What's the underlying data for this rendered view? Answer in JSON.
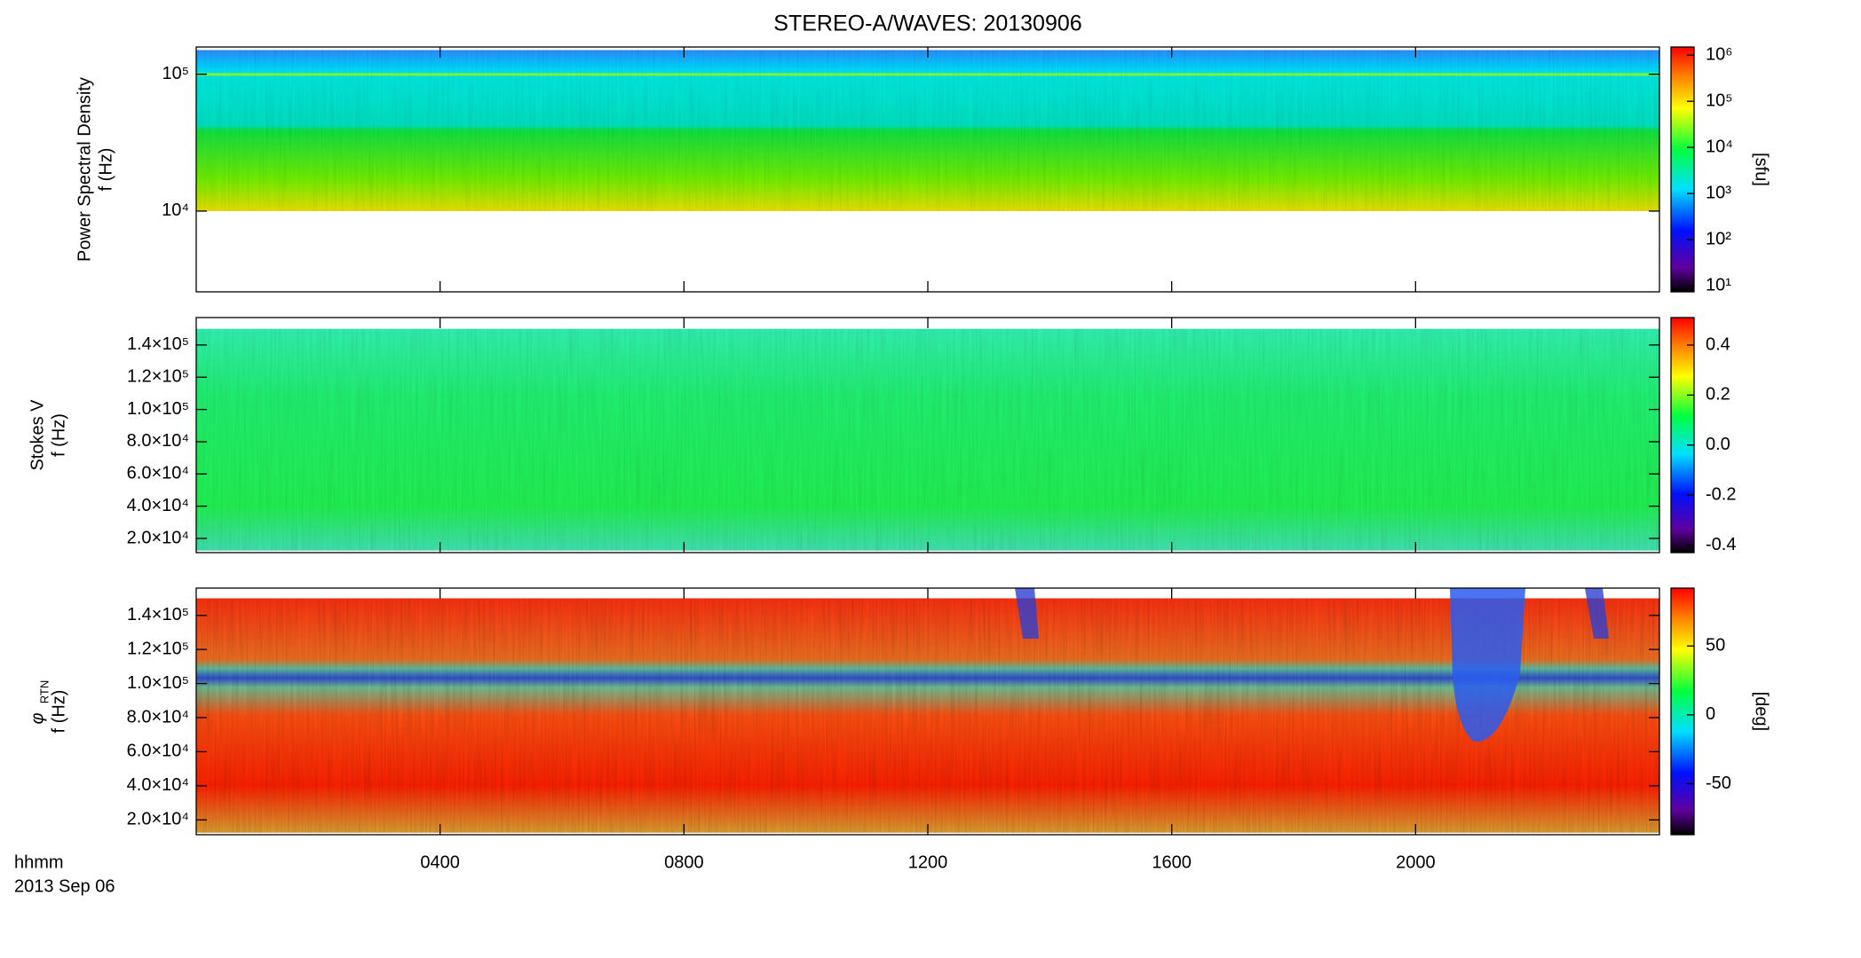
{
  "chart_data": [
    {
      "type": "spectrogram",
      "title": "STEREO-A/WAVES: 20130906",
      "ylabel": "Power Spectral Density",
      "ylabel2": "f (Hz)",
      "ylog": true,
      "ylim": [
        2570,
        158000
      ],
      "yticks": [
        {
          "value": 10000,
          "label": "10⁴"
        },
        {
          "value": 100000,
          "label": "10⁵"
        }
      ],
      "f_range": [
        10000,
        150000
      ],
      "xlim": [
        0,
        24
      ],
      "colorbar": {
        "label": "[sfu]",
        "log": true,
        "clim": [
          7.4,
          1500000
        ],
        "ticks": [
          {
            "value": 10,
            "label": "10¹"
          },
          {
            "value": 100,
            "label": "10²"
          },
          {
            "value": 1000,
            "label": "10³"
          },
          {
            "value": 10000,
            "label": "10⁴"
          },
          {
            "value": 100000,
            "label": "10⁵"
          },
          {
            "value": 1000000,
            "label": "10⁶"
          }
        ]
      }
    },
    {
      "type": "spectrogram",
      "ylabel": "Stokes V",
      "ylabel2": "f (Hz)",
      "ylog": false,
      "ylim": [
        11200,
        157000
      ],
      "yticks": [
        {
          "value": 20000,
          "label": "2.0×10⁴"
        },
        {
          "value": 40000,
          "label": "4.0×10⁴"
        },
        {
          "value": 60000,
          "label": "6.0×10⁴"
        },
        {
          "value": 80000,
          "label": "8.0×10⁴"
        },
        {
          "value": 100000,
          "label": "1.0×10⁵"
        },
        {
          "value": 120000,
          "label": "1.2×10⁵"
        },
        {
          "value": 140000,
          "label": "1.4×10⁵"
        }
      ],
      "f_range": [
        12500,
        150000
      ],
      "xlim": [
        0,
        24
      ],
      "colorbar": {
        "log": false,
        "clim": [
          -0.43,
          0.51
        ],
        "ticks": [
          {
            "value": -0.4,
            "label": "-0.4"
          },
          {
            "value": -0.2,
            "label": "-0.2"
          },
          {
            "value": 0,
            "label": "0.0"
          },
          0.2,
          0.4
        ]
      }
    },
    {
      "type": "spectrogram",
      "ylabel": "φ",
      "ylabel_sub": "RTN",
      "ylabel2": "f (Hz)",
      "ylog": false,
      "ylim": [
        11300,
        156000
      ],
      "yticks": [
        {
          "value": 20000,
          "label": "2.0×10⁴"
        },
        {
          "value": 40000,
          "label": "4.0×10⁴"
        },
        {
          "value": 60000,
          "label": "6.0×10⁴"
        },
        {
          "value": 80000,
          "label": "8.0×10⁴"
        },
        {
          "value": 100000,
          "label": "1.0×10⁵"
        },
        {
          "value": 120000,
          "label": "1.2×10⁵"
        },
        {
          "value": 140000,
          "label": "1.4×10⁵"
        }
      ],
      "f_range": [
        12500,
        150000
      ],
      "xlim": [
        0,
        24
      ],
      "xticks": [
        {
          "value": 4,
          "label": "0400"
        },
        {
          "value": 8,
          "label": "0800"
        },
        {
          "value": 12,
          "label": "1200"
        },
        {
          "value": 16,
          "label": "1600"
        },
        {
          "value": 20,
          "label": "2000"
        }
      ],
      "xlabel": "hhmm",
      "date_label": "2013 Sep 06",
      "colorbar": {
        "label": "[deg]",
        "log": false,
        "clim": [
          -87,
          92
        ],
        "ticks": [
          -50,
          0,
          50
        ]
      }
    }
  ]
}
